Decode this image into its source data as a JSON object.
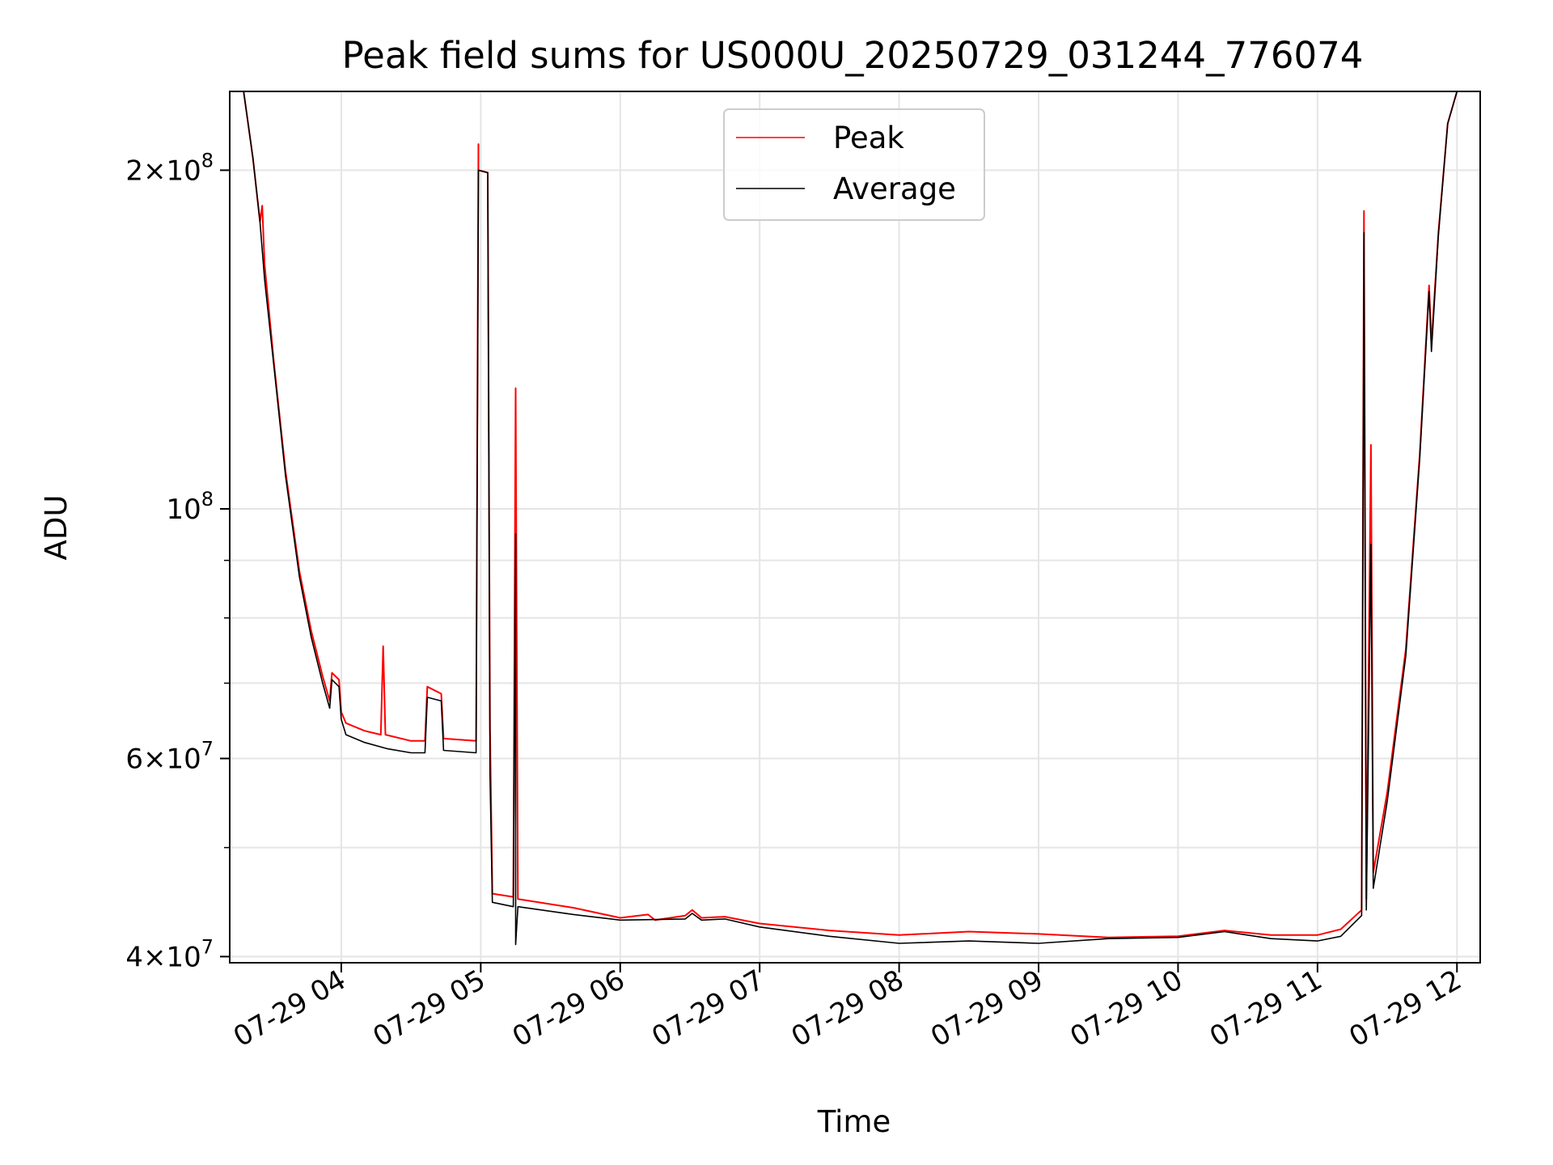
{
  "chart_data": {
    "type": "line",
    "title": "Peak field sums for US000U_20250729_031244_776074",
    "xlabel": "Time",
    "ylabel": "ADU",
    "y_scale": "log",
    "ylim": [
      39500000,
      235000000
    ],
    "xlim": [
      "2025-07-29 03:12",
      "2025-07-29 12:10"
    ],
    "grid": true,
    "legend_position": "upper center",
    "x_ticks": [
      {
        "value": "2025-07-29 04:00",
        "label": "07-29 04"
      },
      {
        "value": "2025-07-29 05:00",
        "label": "07-29 05"
      },
      {
        "value": "2025-07-29 06:00",
        "label": "07-29 06"
      },
      {
        "value": "2025-07-29 07:00",
        "label": "07-29 07"
      },
      {
        "value": "2025-07-29 08:00",
        "label": "07-29 08"
      },
      {
        "value": "2025-07-29 09:00",
        "label": "07-29 09"
      },
      {
        "value": "2025-07-29 10:00",
        "label": "07-29 10"
      },
      {
        "value": "2025-07-29 11:00",
        "label": "07-29 11"
      },
      {
        "value": "2025-07-29 12:00",
        "label": "07-29 12"
      }
    ],
    "y_major_ticks": [
      {
        "value": 40000000,
        "mant": "4",
        "exp": "7"
      },
      {
        "value": 60000000,
        "mant": "6",
        "exp": "7"
      },
      {
        "value": 100000000,
        "mant": "",
        "exp": "8"
      },
      {
        "value": 200000000,
        "mant": "2",
        "exp": "8"
      }
    ],
    "y_minor_ticks": [
      50000000,
      70000000,
      80000000,
      90000000
    ],
    "series": [
      {
        "name": "Peak",
        "color": "#ff0000",
        "points": [
          [
            "2025-07-29 03:12",
            235000000
          ],
          [
            "2025-07-29 03:18",
            235000000
          ],
          [
            "2025-07-29 03:22",
            205000000
          ],
          [
            "2025-07-29 03:25",
            180000000
          ],
          [
            "2025-07-29 03:26",
            186000000
          ],
          [
            "2025-07-29 03:27",
            165000000
          ],
          [
            "2025-07-29 03:31",
            135000000
          ],
          [
            "2025-07-29 03:36",
            108000000
          ],
          [
            "2025-07-29 03:42",
            88000000
          ],
          [
            "2025-07-29 03:47",
            78000000
          ],
          [
            "2025-07-29 03:52",
            71000000
          ],
          [
            "2025-07-29 03:55",
            67500000
          ],
          [
            "2025-07-29 03:56",
            71500000
          ],
          [
            "2025-07-29 03:59",
            70500000
          ],
          [
            "2025-07-29 04:00",
            66000000
          ],
          [
            "2025-07-29 04:02",
            64500000
          ],
          [
            "2025-07-29 04:10",
            63500000
          ],
          [
            "2025-07-29 04:17",
            63000000
          ],
          [
            "2025-07-29 04:18",
            75500000
          ],
          [
            "2025-07-29 04:19",
            63000000
          ],
          [
            "2025-07-29 04:30",
            62200000
          ],
          [
            "2025-07-29 04:36",
            62200000
          ],
          [
            "2025-07-29 04:37",
            69500000
          ],
          [
            "2025-07-29 04:43",
            68500000
          ],
          [
            "2025-07-29 04:44",
            62500000
          ],
          [
            "2025-07-29 04:58",
            62200000
          ],
          [
            "2025-07-29 04:59",
            211000000
          ],
          [
            "2025-07-29 04:59",
            200000000
          ],
          [
            "2025-07-29 05:03",
            199000000
          ],
          [
            "2025-07-29 05:04",
            64000000
          ],
          [
            "2025-07-29 05:05",
            45500000
          ],
          [
            "2025-07-29 05:14",
            45200000
          ],
          [
            "2025-07-29 05:15",
            128000000
          ],
          [
            "2025-07-29 05:16",
            45000000
          ],
          [
            "2025-07-29 05:40",
            44200000
          ],
          [
            "2025-07-29 06:00",
            43300000
          ],
          [
            "2025-07-29 06:12",
            43600000
          ],
          [
            "2025-07-29 06:15",
            43100000
          ],
          [
            "2025-07-29 06:28",
            43500000
          ],
          [
            "2025-07-29 06:31",
            44000000
          ],
          [
            "2025-07-29 06:35",
            43300000
          ],
          [
            "2025-07-29 06:45",
            43400000
          ],
          [
            "2025-07-29 07:00",
            42800000
          ],
          [
            "2025-07-29 07:30",
            42200000
          ],
          [
            "2025-07-29 08:00",
            41800000
          ],
          [
            "2025-07-29 08:30",
            42100000
          ],
          [
            "2025-07-29 09:00",
            41900000
          ],
          [
            "2025-07-29 09:30",
            41600000
          ],
          [
            "2025-07-29 10:00",
            41700000
          ],
          [
            "2025-07-29 10:20",
            42200000
          ],
          [
            "2025-07-29 10:40",
            41800000
          ],
          [
            "2025-07-29 11:00",
            41800000
          ],
          [
            "2025-07-29 11:10",
            42300000
          ],
          [
            "2025-07-29 11:19",
            44000000
          ],
          [
            "2025-07-29 11:20",
            184000000
          ],
          [
            "2025-07-29 11:21",
            45000000
          ],
          [
            "2025-07-29 11:23",
            114000000
          ],
          [
            "2025-07-29 11:24",
            47500000
          ],
          [
            "2025-07-29 11:30",
            56000000
          ],
          [
            "2025-07-29 11:38",
            75000000
          ],
          [
            "2025-07-29 11:44",
            112000000
          ],
          [
            "2025-07-29 11:48",
            158000000
          ],
          [
            "2025-07-29 11:49",
            140000000
          ],
          [
            "2025-07-29 11:52",
            176000000
          ],
          [
            "2025-07-29 11:56",
            220000000
          ],
          [
            "2025-07-29 12:00",
            235000000
          ],
          [
            "2025-07-29 12:10",
            235000000
          ]
        ]
      },
      {
        "name": "Average",
        "color": "#000000",
        "points": [
          [
            "2025-07-29 03:12",
            235000000
          ],
          [
            "2025-07-29 03:18",
            235000000
          ],
          [
            "2025-07-29 03:22",
            205000000
          ],
          [
            "2025-07-29 03:25",
            180000000
          ],
          [
            "2025-07-29 03:27",
            160000000
          ],
          [
            "2025-07-29 03:31",
            134000000
          ],
          [
            "2025-07-29 03:36",
            107000000
          ],
          [
            "2025-07-29 03:42",
            87000000
          ],
          [
            "2025-07-29 03:47",
            77000000
          ],
          [
            "2025-07-29 03:52",
            70000000
          ],
          [
            "2025-07-29 03:55",
            66500000
          ],
          [
            "2025-07-29 03:56",
            70500000
          ],
          [
            "2025-07-29 03:59",
            69500000
          ],
          [
            "2025-07-29 04:00",
            65000000
          ],
          [
            "2025-07-29 04:02",
            63000000
          ],
          [
            "2025-07-29 04:10",
            62000000
          ],
          [
            "2025-07-29 04:20",
            61200000
          ],
          [
            "2025-07-29 04:30",
            60700000
          ],
          [
            "2025-07-29 04:36",
            60700000
          ],
          [
            "2025-07-29 04:37",
            68000000
          ],
          [
            "2025-07-29 04:43",
            67500000
          ],
          [
            "2025-07-29 04:44",
            61000000
          ],
          [
            "2025-07-29 04:58",
            60700000
          ],
          [
            "2025-07-29 04:59",
            200000000
          ],
          [
            "2025-07-29 05:03",
            199000000
          ],
          [
            "2025-07-29 05:04",
            58000000
          ],
          [
            "2025-07-29 05:05",
            44700000
          ],
          [
            "2025-07-29 05:14",
            44300000
          ],
          [
            "2025-07-29 05:15",
            95000000
          ],
          [
            "2025-07-29 05:15",
            41000000
          ],
          [
            "2025-07-29 05:16",
            44300000
          ],
          [
            "2025-07-29 05:40",
            43600000
          ],
          [
            "2025-07-29 06:00",
            43100000
          ],
          [
            "2025-07-29 06:28",
            43200000
          ],
          [
            "2025-07-29 06:31",
            43700000
          ],
          [
            "2025-07-29 06:35",
            43100000
          ],
          [
            "2025-07-29 06:45",
            43200000
          ],
          [
            "2025-07-29 07:00",
            42500000
          ],
          [
            "2025-07-29 07:30",
            41700000
          ],
          [
            "2025-07-29 08:00",
            41100000
          ],
          [
            "2025-07-29 08:30",
            41300000
          ],
          [
            "2025-07-29 09:00",
            41100000
          ],
          [
            "2025-07-29 09:30",
            41500000
          ],
          [
            "2025-07-29 10:00",
            41600000
          ],
          [
            "2025-07-29 10:20",
            42100000
          ],
          [
            "2025-07-29 10:40",
            41500000
          ],
          [
            "2025-07-29 11:00",
            41300000
          ],
          [
            "2025-07-29 11:10",
            41700000
          ],
          [
            "2025-07-29 11:19",
            43500000
          ],
          [
            "2025-07-29 11:20",
            176000000
          ],
          [
            "2025-07-29 11:21",
            44000000
          ],
          [
            "2025-07-29 11:23",
            93000000
          ],
          [
            "2025-07-29 11:24",
            46000000
          ],
          [
            "2025-07-29 11:30",
            55000000
          ],
          [
            "2025-07-29 11:38",
            74000000
          ],
          [
            "2025-07-29 11:44",
            111000000
          ],
          [
            "2025-07-29 11:48",
            156000000
          ],
          [
            "2025-07-29 11:49",
            138000000
          ],
          [
            "2025-07-29 11:52",
            175000000
          ],
          [
            "2025-07-29 11:56",
            220000000
          ],
          [
            "2025-07-29 12:00",
            235000000
          ],
          [
            "2025-07-29 12:10",
            235000000
          ]
        ]
      }
    ]
  }
}
